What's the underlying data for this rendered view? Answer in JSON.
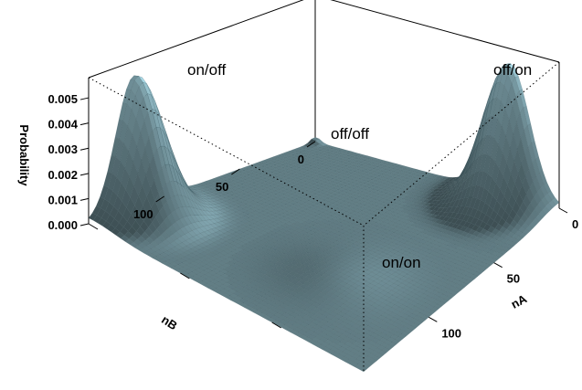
{
  "chart_data": {
    "type": "surface",
    "title": "",
    "xlabel": "nA",
    "ylabel": "nB",
    "zlabel": "Probability",
    "xlim": [
      0,
      150
    ],
    "ylim": [
      0,
      150
    ],
    "zlim": [
      0,
      0.0058
    ],
    "x_ticks": [
      {
        "value": 0,
        "label": "0"
      },
      {
        "value": 50,
        "label": "50"
      },
      {
        "value": 100,
        "label": "100"
      }
    ],
    "y_ticks": [
      {
        "value": 0,
        "label": "0"
      },
      {
        "value": 50,
        "label": "50"
      },
      {
        "value": 100,
        "label": "100"
      }
    ],
    "z_ticks": [
      {
        "value": 0,
        "label": "0.000"
      },
      {
        "value": 0.001,
        "label": "0.001"
      },
      {
        "value": 0.002,
        "label": "0.002"
      },
      {
        "value": 0.003,
        "label": "0.003"
      },
      {
        "value": 0.004,
        "label": "0.004"
      },
      {
        "value": 0.005,
        "label": "0.005"
      }
    ],
    "peaks": [
      {
        "label": "on/off",
        "nA": 2,
        "nB": 120,
        "height": 0.0053,
        "spread": 12
      },
      {
        "label": "off/on",
        "nA": 120,
        "nB": 2,
        "height": 0.0053,
        "spread": 12
      },
      {
        "label": "off/off",
        "nA": 1,
        "nB": 1,
        "height": 0.0002,
        "spread": 2.5
      },
      {
        "label": "on/on",
        "nA": 100,
        "nB": 100,
        "height": 0.00018,
        "spread": 18
      }
    ],
    "surface_color": "#a9d9e6",
    "grid": false
  }
}
